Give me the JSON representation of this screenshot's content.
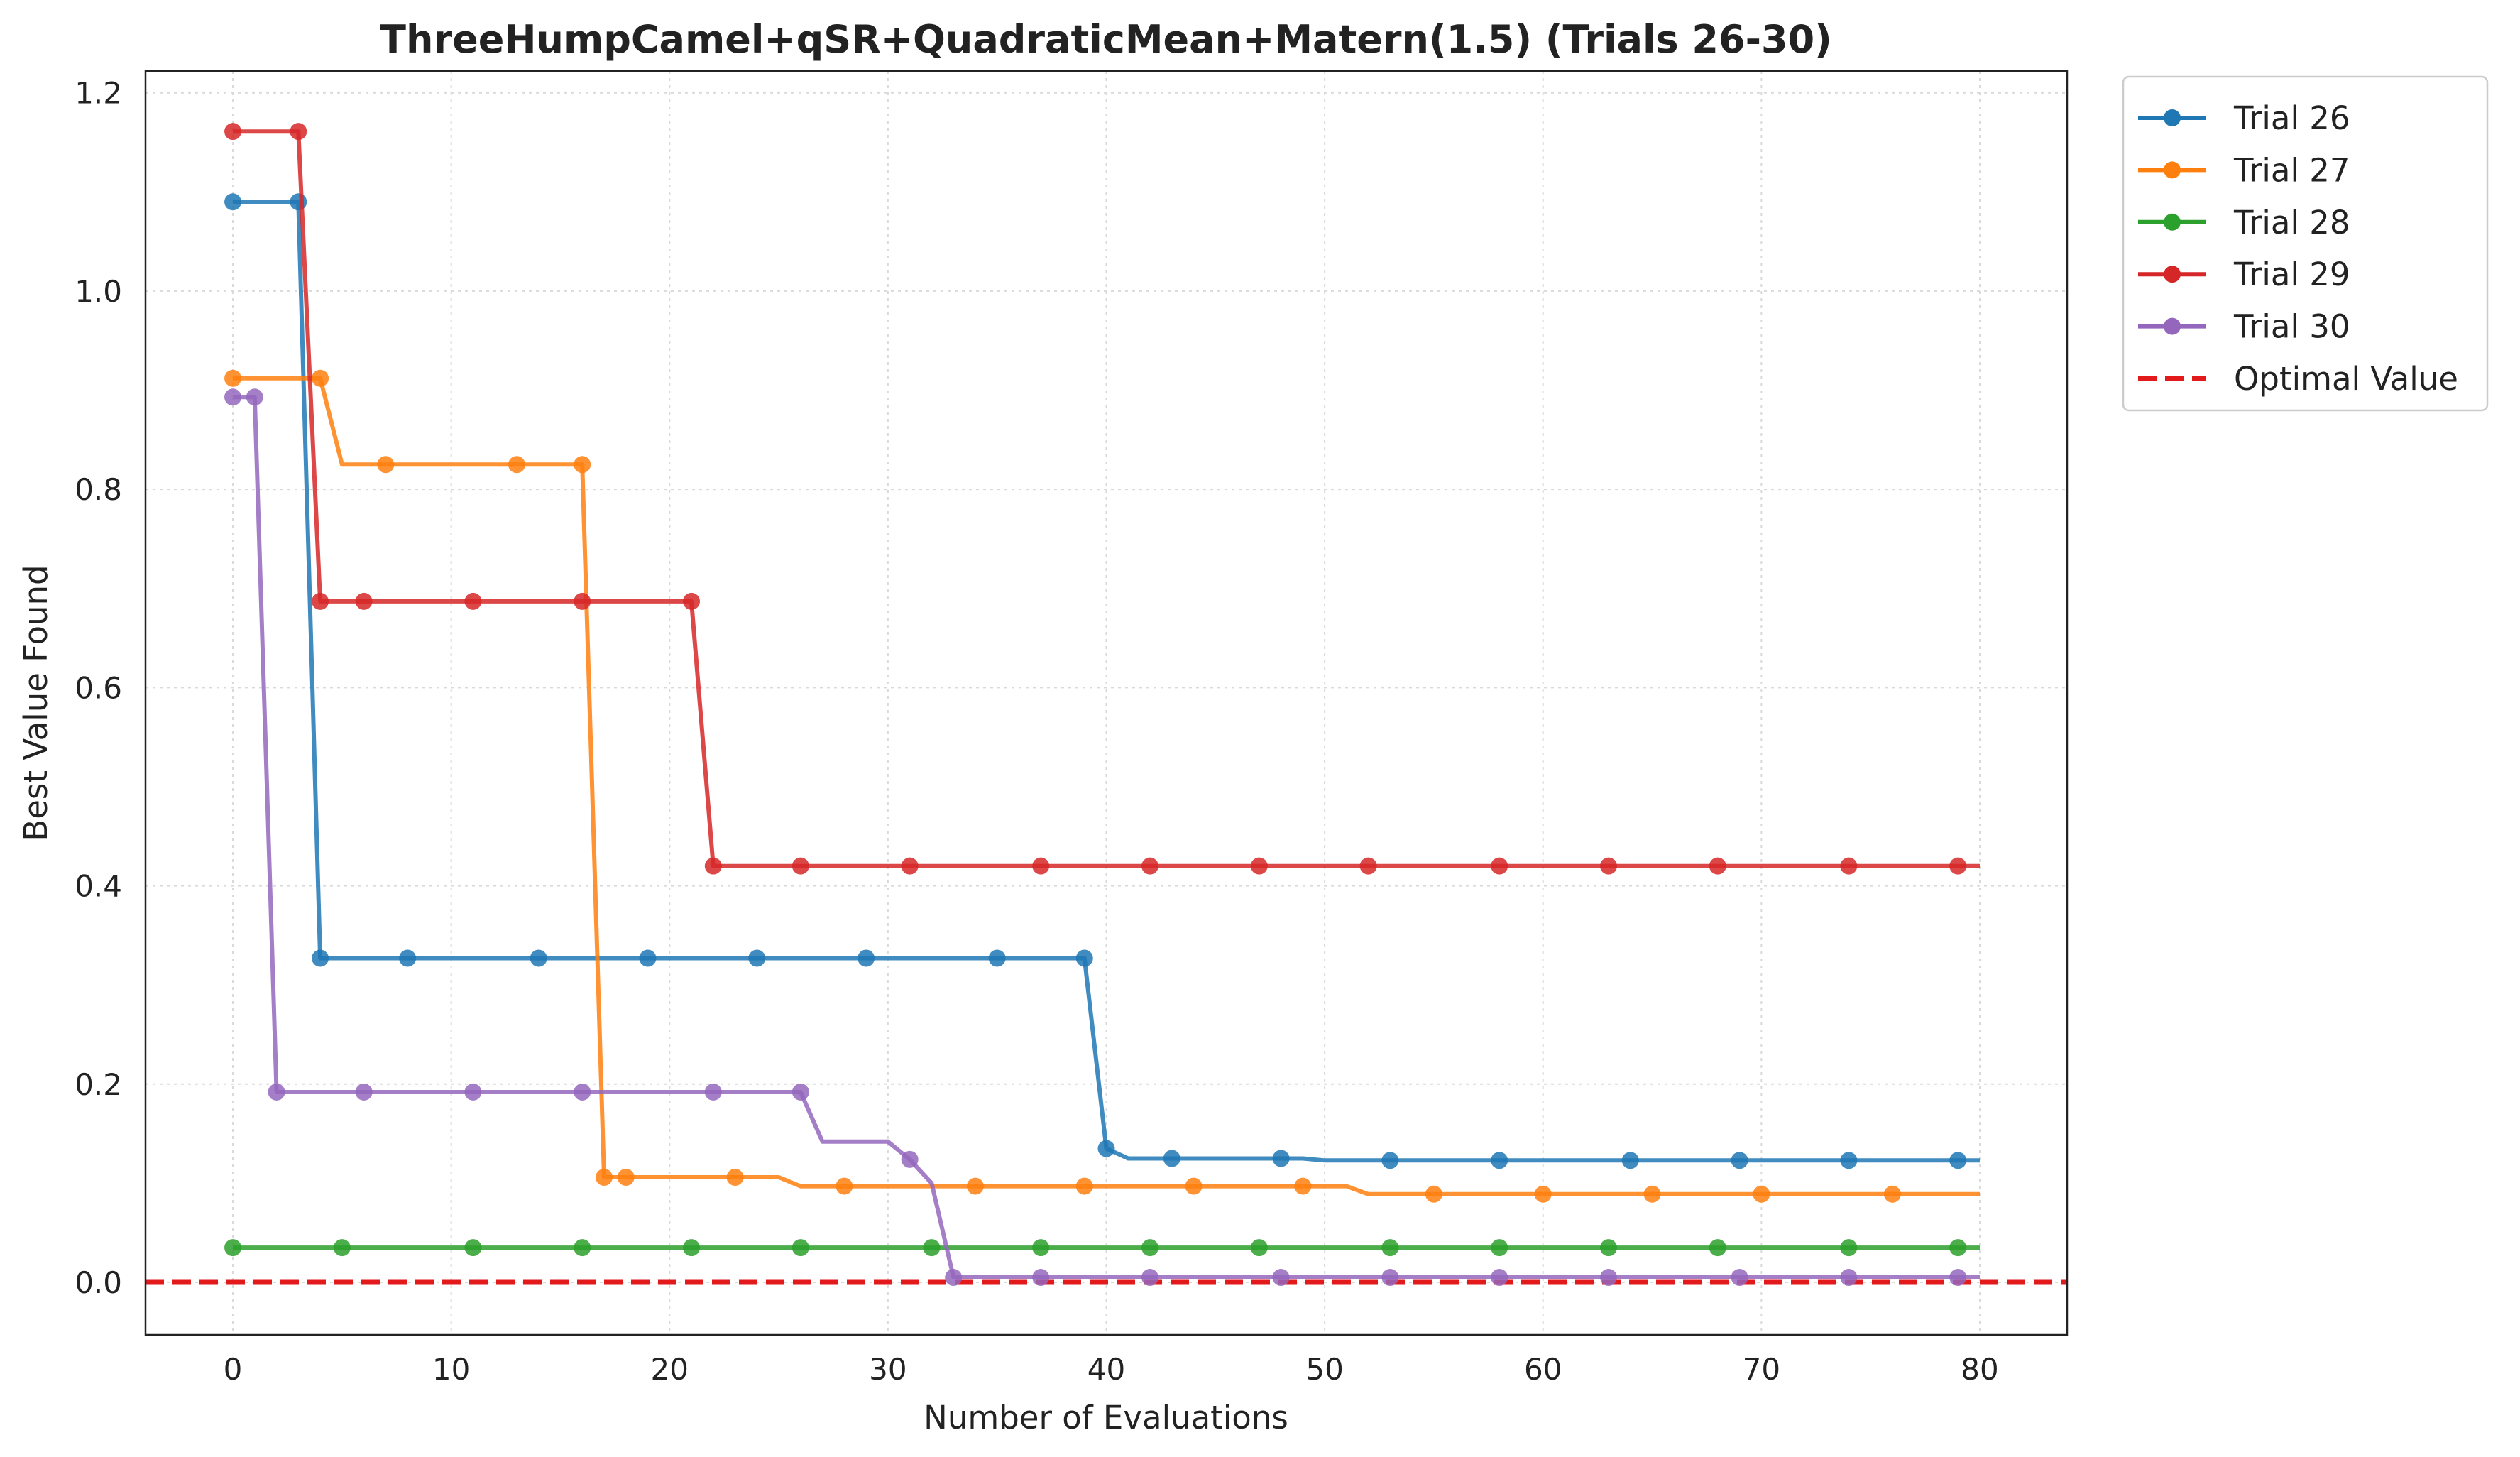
{
  "chart_data": {
    "type": "line",
    "title": "ThreeHumpCamel+qSR+QuadraticMean+Matern(1.5) (Trials 26-30)",
    "xlabel": "Number of Evaluations",
    "ylabel": "Best Value Found",
    "xlim": [
      -4,
      84
    ],
    "ylim": [
      -0.053,
      1.222
    ],
    "xticks": [
      0,
      10,
      20,
      30,
      40,
      50,
      60,
      70,
      80
    ],
    "yticks": [
      0.0,
      0.2,
      0.4,
      0.6,
      0.8,
      1.0,
      1.2
    ],
    "xtick_labels": [
      "0",
      "10",
      "20",
      "30",
      "40",
      "50",
      "60",
      "70",
      "80"
    ],
    "ytick_labels": [
      "0.0",
      "0.2",
      "0.4",
      "0.6",
      "0.8",
      "1.0",
      "1.2"
    ],
    "grid": true,
    "legend_position": "outside-top-right",
    "series": [
      {
        "name": "Trial 26",
        "color": "#1f77b4",
        "points": [
          [
            0,
            1.09
          ],
          [
            3,
            1.09
          ],
          [
            4,
            0.327
          ],
          [
            39,
            0.327
          ],
          [
            40,
            0.135
          ],
          [
            41,
            0.125
          ],
          [
            49,
            0.125
          ],
          [
            50,
            0.123
          ],
          [
            80,
            0.123
          ]
        ],
        "markers": [
          0,
          3,
          4,
          8,
          14,
          19,
          24,
          29,
          35,
          39,
          40,
          43,
          48,
          53,
          58,
          64,
          69,
          74,
          79
        ]
      },
      {
        "name": "Trial 27",
        "color": "#ff7f0e",
        "points": [
          [
            0,
            0.912
          ],
          [
            4,
            0.912
          ],
          [
            5,
            0.825
          ],
          [
            16,
            0.825
          ],
          [
            17,
            0.106
          ],
          [
            25,
            0.106
          ],
          [
            26,
            0.097
          ],
          [
            51,
            0.097
          ],
          [
            52,
            0.089
          ],
          [
            80,
            0.089
          ]
        ],
        "markers": [
          0,
          4,
          7,
          13,
          16,
          17,
          18,
          23,
          28,
          34,
          39,
          44,
          49,
          55,
          60,
          65,
          70,
          76
        ]
      },
      {
        "name": "Trial 28",
        "color": "#2ca02c",
        "points": [
          [
            0,
            0.035
          ],
          [
            80,
            0.035
          ]
        ],
        "markers": [
          0,
          5,
          11,
          16,
          21,
          26,
          32,
          37,
          42,
          47,
          53,
          58,
          63,
          68,
          74,
          79
        ]
      },
      {
        "name": "Trial 29",
        "color": "#d62728",
        "points": [
          [
            0,
            1.161
          ],
          [
            3,
            1.161
          ],
          [
            4,
            0.687
          ],
          [
            21,
            0.687
          ],
          [
            22,
            0.42
          ],
          [
            80,
            0.42
          ]
        ],
        "markers": [
          0,
          3,
          4,
          6,
          11,
          16,
          21,
          22,
          26,
          31,
          37,
          42,
          47,
          52,
          58,
          63,
          68,
          74,
          79
        ]
      },
      {
        "name": "Trial 30",
        "color": "#9467bd",
        "points": [
          [
            0,
            0.893
          ],
          [
            1,
            0.893
          ],
          [
            2,
            0.192
          ],
          [
            26,
            0.192
          ],
          [
            27,
            0.142
          ],
          [
            30,
            0.142
          ],
          [
            31,
            0.124
          ],
          [
            32,
            0.1
          ],
          [
            33,
            0.005
          ],
          [
            80,
            0.005
          ]
        ],
        "markers": [
          0,
          1,
          2,
          6,
          11,
          16,
          22,
          26,
          31,
          33,
          37,
          42,
          48,
          53,
          58,
          63,
          69,
          74,
          79
        ]
      }
    ],
    "reference_line": {
      "name": "Optimal Value",
      "y": 0.0,
      "color": "#e31a1c",
      "style": "dashed"
    }
  }
}
